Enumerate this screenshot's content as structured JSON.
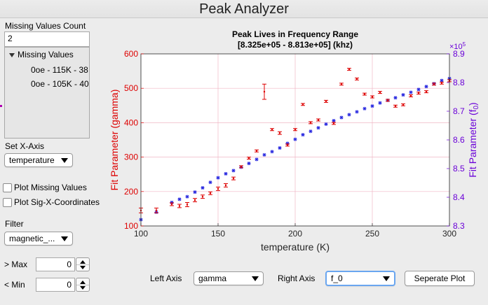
{
  "window": {
    "title": "Peak Analyzer"
  },
  "sidebar": {
    "missing_count_label": "Missing Values Count",
    "missing_count_value": "2",
    "tree": {
      "root_label": "Missing Values",
      "items": [
        "0oe - 115K - 38",
        "0oe - 105K - 40"
      ]
    },
    "x_axis_label": "Set X-Axis",
    "x_axis_value": "temperature",
    "plot_missing_label": "Plot Missing Values",
    "plot_sigx_label": "Plot Sig-X-Coordinates",
    "filter_label": "Filter",
    "filter_value": "magnetic_...",
    "max_label": "> Max",
    "max_value": "0",
    "min_label": "< Min",
    "min_value": "0"
  },
  "bottom": {
    "left_axis_label": "Left Axis",
    "left_axis_value": "gamma",
    "right_axis_label": "Right Axis",
    "right_axis_value": "f_0",
    "separate_button": "Seperate Plot"
  },
  "colors": {
    "left_series": "#dd0000",
    "right_series": "#2a2ae0",
    "right_axis": "#6a00d8",
    "grid": "#f0b7c6"
  },
  "chart_data": {
    "type": "scatter",
    "title_line1": "Peak Lives in Frequency Range",
    "title_line2": "[8.325e+05 - 8.813e+05] (khz)",
    "xlabel": "temperature (K)",
    "ylabel_left": "Fit Parameter (gamma)",
    "ylabel_right": "Fit Parameter  (f",
    "ylabel_right_sub": "0",
    "ylabel_right_close": ")",
    "right_exponent_base": "×10",
    "right_exponent_power": "5",
    "xlim": [
      100,
      300
    ],
    "ylim_left": [
      100,
      600
    ],
    "ylim_right": [
      8.3,
      8.9
    ],
    "x_ticks": [
      100,
      150,
      200,
      250,
      300
    ],
    "y_ticks_left": [
      100,
      200,
      300,
      400,
      500,
      600
    ],
    "y_ticks_right": [
      8.3,
      8.4,
      8.5,
      8.6,
      8.7,
      8.8,
      8.9
    ],
    "x_tick_labels": [
      "100",
      "150",
      "200",
      "250",
      "300"
    ],
    "y_tick_labels_left": [
      "100",
      "200",
      "300",
      "400",
      "500",
      "600"
    ],
    "y_tick_labels_right": [
      "8.3",
      "8.4",
      "8.5",
      "8.6",
      "8.7",
      "8.8",
      "8.9"
    ],
    "grid": true,
    "series": [
      {
        "axis": "left",
        "marker": "errorbar",
        "points": [
          [
            100,
            145,
            7
          ],
          [
            110,
            145,
            7
          ],
          [
            120,
            163,
            4
          ],
          [
            125,
            158,
            5
          ],
          [
            130,
            162,
            6
          ],
          [
            135,
            175,
            5
          ],
          [
            140,
            185,
            5
          ],
          [
            145,
            195,
            4
          ],
          [
            150,
            208,
            5
          ],
          [
            155,
            218,
            5
          ],
          [
            160,
            238,
            4
          ],
          [
            165,
            272,
            3
          ],
          [
            170,
            297,
            3
          ],
          [
            175,
            318,
            3
          ],
          [
            180,
            490,
            22
          ],
          [
            185,
            380,
            3
          ],
          [
            190,
            370,
            4
          ],
          [
            195,
            335,
            3
          ],
          [
            200,
            380,
            3
          ],
          [
            205,
            453,
            3
          ],
          [
            210,
            400,
            3
          ],
          [
            215,
            408,
            3
          ],
          [
            220,
            462,
            3
          ],
          [
            225,
            398,
            3
          ],
          [
            230,
            512,
            3
          ],
          [
            235,
            555,
            3
          ],
          [
            240,
            527,
            3
          ],
          [
            245,
            483,
            3
          ],
          [
            250,
            475,
            3
          ],
          [
            255,
            488,
            3
          ],
          [
            260,
            465,
            3
          ],
          [
            265,
            448,
            3
          ],
          [
            270,
            452,
            3
          ],
          [
            275,
            478,
            3
          ],
          [
            280,
            486,
            3
          ],
          [
            285,
            490,
            3
          ],
          [
            290,
            512,
            3
          ],
          [
            295,
            515,
            3
          ],
          [
            300,
            522,
            3
          ]
        ]
      },
      {
        "axis": "right",
        "marker": "star",
        "points": [
          [
            100,
            8.322
          ],
          [
            110,
            8.348
          ],
          [
            120,
            8.382
          ],
          [
            125,
            8.393
          ],
          [
            130,
            8.402
          ],
          [
            135,
            8.418
          ],
          [
            140,
            8.433
          ],
          [
            145,
            8.452
          ],
          [
            150,
            8.468
          ],
          [
            155,
            8.482
          ],
          [
            160,
            8.493
          ],
          [
            165,
            8.505
          ],
          [
            170,
            8.518
          ],
          [
            175,
            8.532
          ],
          [
            180,
            8.548
          ],
          [
            185,
            8.559
          ],
          [
            190,
            8.572
          ],
          [
            195,
            8.588
          ],
          [
            200,
            8.602
          ],
          [
            205,
            8.618
          ],
          [
            210,
            8.63
          ],
          [
            215,
            8.642
          ],
          [
            220,
            8.655
          ],
          [
            225,
            8.667
          ],
          [
            230,
            8.678
          ],
          [
            235,
            8.688
          ],
          [
            240,
            8.698
          ],
          [
            245,
            8.709
          ],
          [
            250,
            8.718
          ],
          [
            255,
            8.729
          ],
          [
            260,
            8.738
          ],
          [
            265,
            8.747
          ],
          [
            270,
            8.757
          ],
          [
            275,
            8.766
          ],
          [
            280,
            8.776
          ],
          [
            285,
            8.786
          ],
          [
            290,
            8.796
          ],
          [
            295,
            8.807
          ],
          [
            300,
            8.814
          ]
        ]
      }
    ]
  }
}
